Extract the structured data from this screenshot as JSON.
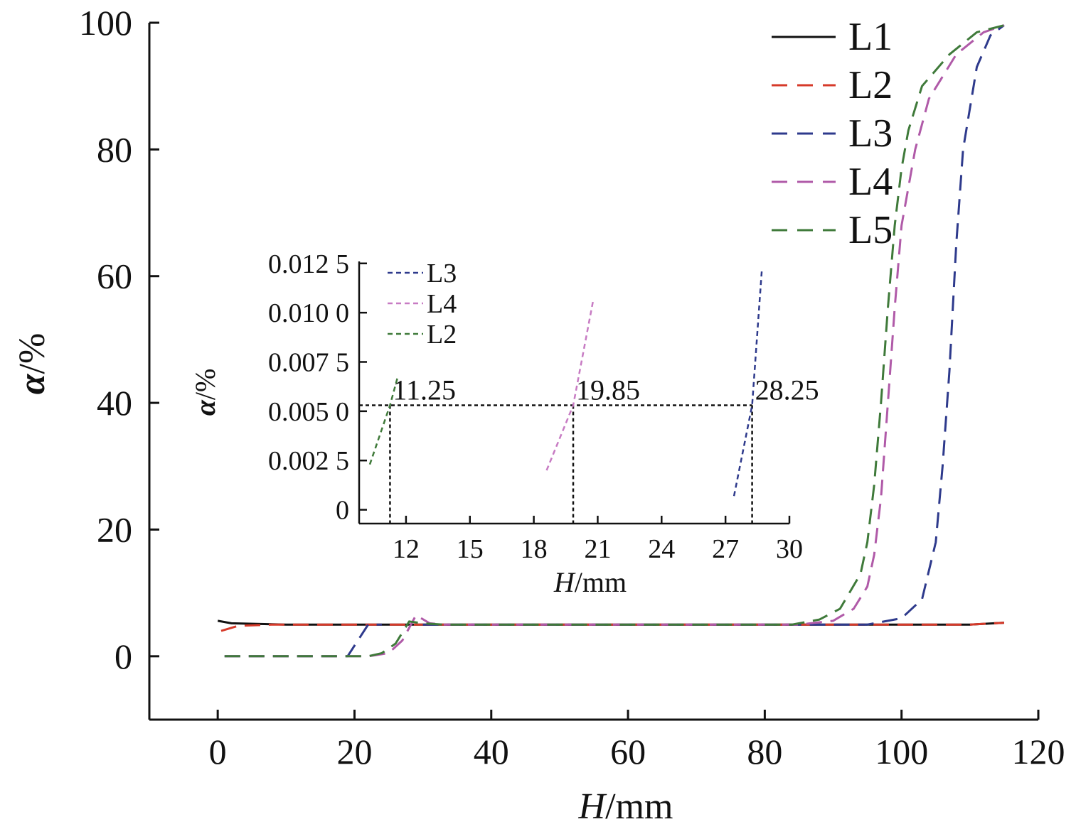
{
  "chart_data": [
    {
      "type": "line",
      "xlabel_italic": "H",
      "xlabel_unit": "/mm",
      "ylabel_symbol": "α",
      "ylabel_unit": "/%",
      "xlim": [
        -10,
        120
      ],
      "ylim": [
        -10,
        100
      ],
      "x_ticks": [
        0,
        20,
        40,
        60,
        80,
        100,
        120
      ],
      "x_tick_labels": [
        "0",
        "20",
        "40",
        "60",
        "80",
        "100",
        "120"
      ],
      "y_ticks": [
        0,
        20,
        40,
        60,
        80,
        100
      ],
      "y_tick_labels": [
        "0",
        "20",
        "40",
        "60",
        "80",
        "100"
      ],
      "legend_position": "top-right",
      "series": [
        {
          "name": "L1",
          "color": "#111111",
          "dash": "solid",
          "x": [
            0,
            2,
            10,
            30,
            60,
            90,
            110,
            115
          ],
          "y": [
            5.6,
            5.2,
            5.0,
            5.0,
            5.0,
            5.0,
            5.0,
            5.3
          ]
        },
        {
          "name": "L2",
          "color": "#d63a2a",
          "dash": "dashed",
          "x": [
            0.5,
            3,
            8,
            20,
            40,
            60,
            80,
            100,
            110,
            115
          ],
          "y": [
            4.0,
            4.8,
            5.0,
            5.0,
            5.0,
            5.0,
            5.0,
            5.0,
            5.0,
            5.3
          ]
        },
        {
          "name": "L3",
          "color": "#2e3a8c",
          "dash": "dashed",
          "x": [
            1,
            10,
            19,
            22,
            24,
            30,
            60,
            95,
            100,
            103,
            105,
            106,
            107,
            108,
            109,
            111,
            113,
            115
          ],
          "y": [
            0,
            0,
            0,
            5,
            5,
            5,
            5,
            5,
            6,
            9,
            18,
            30,
            45,
            65,
            80,
            93,
            98,
            99.6
          ],
          "segments": [
            [
              0,
              4
            ],
            [
              5,
              17
            ]
          ]
        },
        {
          "name": "L4",
          "color": "#b05aa8",
          "dash": "dashed",
          "x": [
            1,
            10,
            22,
            25,
            27,
            29,
            31,
            33,
            60,
            85,
            90,
            93,
            95,
            96,
            97,
            98,
            99,
            100,
            101,
            102,
            104,
            108,
            112,
            115
          ],
          "y": [
            0,
            0,
            0,
            0.5,
            2.5,
            6.5,
            5.2,
            5.0,
            5.0,
            5.0,
            5.6,
            7.5,
            11,
            16,
            25,
            40,
            55,
            68,
            74,
            80,
            88,
            95,
            98.5,
            99.6
          ]
        },
        {
          "name": "L5",
          "color": "#3f7a3a",
          "dash": "dashed",
          "x": [
            1,
            10,
            22,
            24,
            26,
            28,
            30,
            33,
            60,
            84,
            88,
            91,
            94,
            95,
            96,
            97,
            98,
            99,
            100,
            101,
            103,
            107,
            111,
            115
          ],
          "y": [
            0,
            0,
            0,
            0.5,
            2,
            5.5,
            5.2,
            5.0,
            5.0,
            5.0,
            5.8,
            7.5,
            13,
            18,
            27,
            40,
            55,
            68,
            77,
            83,
            90,
            95,
            98.5,
            99.6
          ]
        }
      ]
    },
    {
      "type": "line",
      "xlabel_italic": "H",
      "xlabel_unit": "/mm",
      "ylabel_symbol": "α",
      "ylabel_unit": "/%",
      "xlim": [
        9.8,
        30
      ],
      "ylim": [
        -0.0007,
        0.0126
      ],
      "x_ticks": [
        12,
        15,
        18,
        21,
        24,
        27,
        30
      ],
      "x_tick_labels": [
        "12",
        "15",
        "18",
        "21",
        "24",
        "27",
        "30"
      ],
      "y_ticks": [
        0,
        0.0025,
        0.005,
        0.0075,
        0.01,
        0.0125
      ],
      "y_tick_labels": [
        "0",
        "0.002 5",
        "0.005 0",
        "0.007 5",
        "0.010 0",
        "0.012 5"
      ],
      "legend_position": "top-left",
      "series": [
        {
          "name": "L3",
          "color": "#2e3a8c",
          "dash": "dashed",
          "x": [
            27.4,
            28.25,
            28.7
          ],
          "y": [
            0.0007,
            0.0053,
            0.0121
          ]
        },
        {
          "name": "L4",
          "color": "#c77bc3",
          "dash": "dashed",
          "x": [
            18.6,
            19.85,
            20.8
          ],
          "y": [
            0.002,
            0.0053,
            0.0107
          ]
        },
        {
          "name": "L2",
          "color": "#3f7a3a",
          "dash": "dashed",
          "x": [
            10.3,
            11.25,
            11.6
          ],
          "y": [
            0.0023,
            0.0053,
            0.0067
          ]
        }
      ],
      "annotations": [
        {
          "x": 11.25,
          "y": 0.0053,
          "label": "11.25"
        },
        {
          "x": 19.85,
          "y": 0.0053,
          "label": "19.85"
        },
        {
          "x": 28.25,
          "y": 0.0053,
          "label": "28.25"
        }
      ]
    }
  ]
}
